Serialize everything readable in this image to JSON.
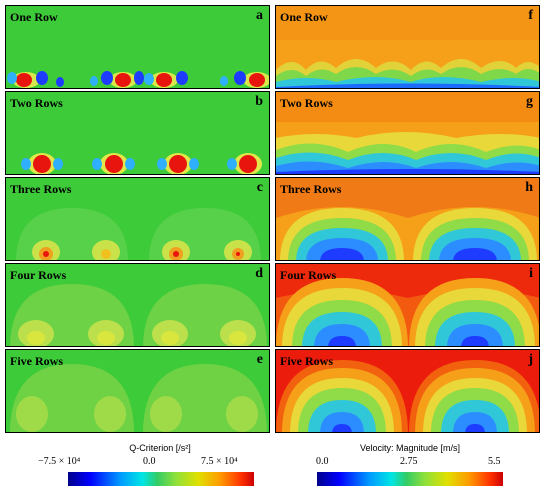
{
  "left_panels": [
    {
      "title": "One Row",
      "letter": "a"
    },
    {
      "title": "Two Rows",
      "letter": "b"
    },
    {
      "title": "Three Rows",
      "letter": "c"
    },
    {
      "title": "Four Rows",
      "letter": "d"
    },
    {
      "title": "Five Rows",
      "letter": "e"
    }
  ],
  "right_panels": [
    {
      "title": "One Row",
      "letter": "f"
    },
    {
      "title": "Two Rows",
      "letter": "g"
    },
    {
      "title": "Three Rows",
      "letter": "h"
    },
    {
      "title": "Four Rows",
      "letter": "i"
    },
    {
      "title": "Five Rows",
      "letter": "j"
    }
  ],
  "q_colorbar": {
    "title": "Q-Criterion [/s²]",
    "ticks": [
      "−7.5 × 10⁴",
      "0.0",
      "7.5 × 10⁴"
    ]
  },
  "v_colorbar": {
    "title": "Velocity: Magnitude [m/s]",
    "ticks": [
      "0.0",
      "2.75",
      "5.5"
    ]
  },
  "colors": {
    "q_background": "#33cc33",
    "v_background_low": "#f7a21a",
    "v_background_high": "#ee2a0c",
    "core_red": "#e8140e",
    "core_blue": "#1d3cff"
  }
}
